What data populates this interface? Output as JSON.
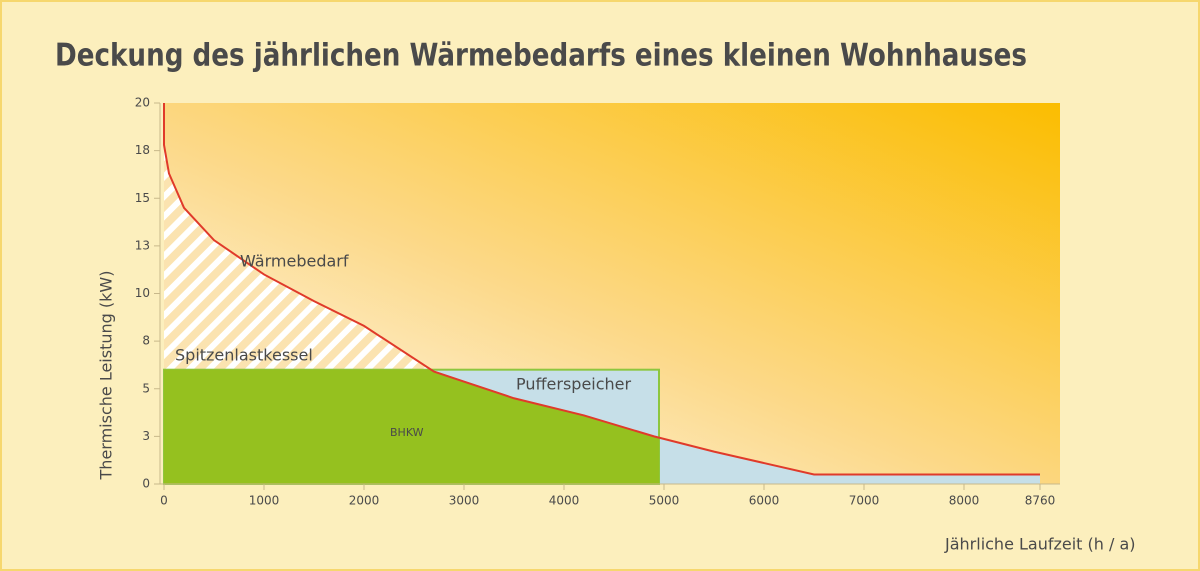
{
  "chart_data": {
    "type": "line",
    "title": "Deckung des jährlichen Wärmebedarfs eines kleinen Wohnhauses",
    "xlabel": "Jährliche Laufzeit (h / a)",
    "ylabel": "Thermische Leistung (kW)",
    "x": [
      0,
      0,
      50,
      200,
      500,
      1000,
      1500,
      2000,
      2700,
      3500,
      4200,
      4900,
      5500,
      6000,
      6500,
      8760
    ],
    "series": [
      {
        "name": "Wärmebedarf",
        "color": "#e03a2a",
        "values": [
          20,
          17.8,
          16.3,
          14.5,
          12.8,
          11.0,
          9.6,
          8.3,
          5.9,
          4.5,
          3.6,
          2.5,
          1.7,
          1.1,
          0.5,
          0.5
        ]
      }
    ],
    "areas": [
      {
        "name": "BHKW",
        "hours": 4950,
        "power": 6,
        "color": "#95c11f"
      },
      {
        "name": "Pufferspeicher",
        "hours": 4950,
        "power": 6,
        "color": "#c6dfe8"
      }
    ],
    "annotation": "Spitzenlastkessel",
    "xlim": [
      0,
      8960
    ],
    "ylim": [
      0,
      20
    ],
    "xticks": [
      0,
      1000,
      2000,
      3000,
      4000,
      5000,
      6000,
      7000,
      8000,
      8760
    ],
    "yticks": [
      0,
      {
        "value": 2.5,
        "label": "3"
      },
      5,
      {
        "value": 7.5,
        "label": "8"
      },
      10,
      {
        "value": 12.5,
        "label": "13"
      },
      15,
      {
        "value": 17.5,
        "label": "18"
      },
      20
    ]
  }
}
